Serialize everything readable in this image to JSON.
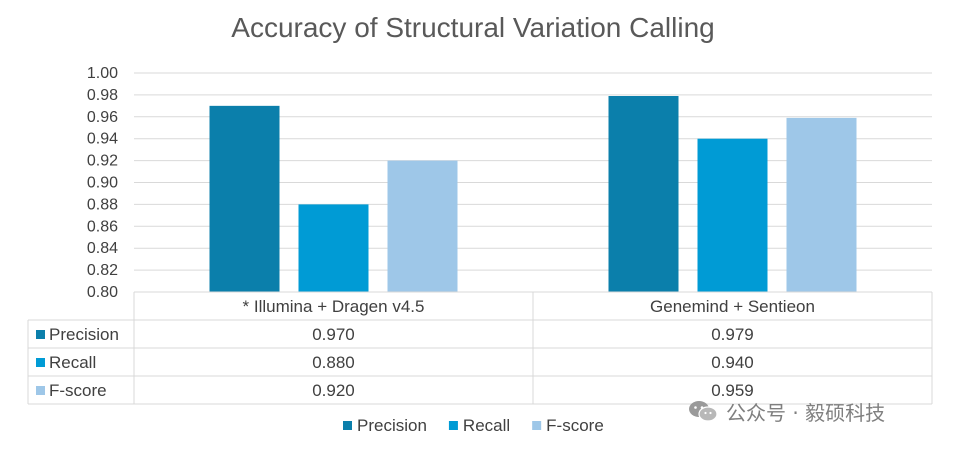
{
  "title": "Accuracy of Structural Variation Calling",
  "colors": {
    "Precision": "#0b7fab",
    "Recall": "#009bd5",
    "F-score": "#9ec7e8",
    "grid": "#d9d9d9",
    "table": "#d9d9d9"
  },
  "watermark": {
    "text": "公众号 · 毅硕科技",
    "icon": "wechat-icon"
  },
  "chart_data": {
    "type": "bar",
    "title": "Accuracy of Structural Variation Calling",
    "categories": [
      "* Illumina + Dragen v4.5",
      "Genemind + Sentieon"
    ],
    "series": [
      {
        "name": "Precision",
        "values": [
          0.97,
          0.979
        ],
        "labels": [
          "0.970",
          "0.979"
        ]
      },
      {
        "name": "Recall",
        "values": [
          0.88,
          0.94
        ],
        "labels": [
          "0.880",
          "0.940"
        ]
      },
      {
        "name": "F-score",
        "values": [
          0.92,
          0.959
        ],
        "labels": [
          "0.920",
          "0.959"
        ]
      }
    ],
    "ylim": [
      0.8,
      1.0
    ],
    "yticks": [
      "0.80",
      "0.82",
      "0.84",
      "0.86",
      "0.88",
      "0.90",
      "0.92",
      "0.94",
      "0.96",
      "0.98",
      "1.00"
    ],
    "xlabel": "",
    "ylabel": "",
    "grid": true,
    "legend": "bottom",
    "data_table": true
  }
}
